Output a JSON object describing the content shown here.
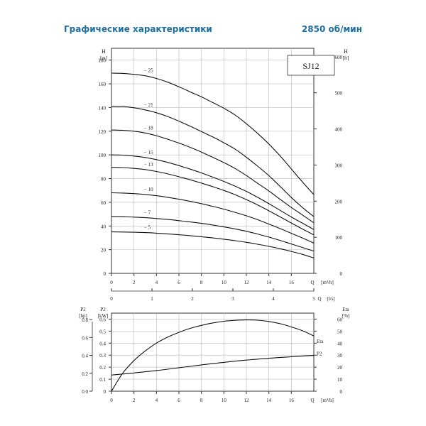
{
  "header": {
    "title": "Графические характеристики",
    "speed": "2850 об/мин"
  },
  "chart_data": [
    {
      "type": "line",
      "model_label": "SJ12",
      "ylabel_left": "H",
      "ylabel_left_unit": "[m]",
      "ylabel_right": "H",
      "ylabel_right_unit": "[ft]",
      "xlabel": "Q",
      "xlabel_unit": "[m³/h]",
      "x2label": "Q",
      "x2label_unit": "[l/s]",
      "xlim": [
        0,
        18
      ],
      "ylim": [
        0,
        190
      ],
      "x_ticks": [
        0,
        2,
        4,
        6,
        8,
        10,
        12,
        14,
        16
      ],
      "y_ticks": [
        0,
        20,
        40,
        60,
        80,
        100,
        120,
        140,
        160,
        180
      ],
      "y_right_ticks": [
        0,
        100,
        200,
        300,
        400,
        500,
        600
      ],
      "x2_ticks": [
        0,
        1,
        2,
        3,
        4,
        5
      ],
      "grid": true,
      "x": [
        0,
        1,
        2,
        3,
        4,
        5,
        6,
        7,
        8,
        9,
        10,
        11,
        12,
        13,
        14,
        15,
        16,
        17,
        18
      ],
      "series": [
        {
          "name": "-25",
          "values": [
            169,
            168.8,
            168,
            166.8,
            164.5,
            161.4,
            157.5,
            153.2,
            149,
            144.2,
            139.4,
            133.6,
            126.3,
            118.2,
            109.2,
            99.2,
            88.1,
            77,
            66.5
          ]
        },
        {
          "name": "-21",
          "values": [
            141,
            140.8,
            139.8,
            138,
            135.6,
            132.4,
            128.5,
            124.2,
            119.7,
            115.2,
            110.2,
            104.8,
            98,
            90.5,
            82.5,
            73.4,
            64,
            55.5,
            47.9
          ]
        },
        {
          "name": "-18",
          "values": [
            121,
            120.8,
            120,
            118.5,
            116.2,
            113.2,
            110,
            106.4,
            102.4,
            98,
            93.5,
            88.5,
            82.6,
            76,
            69.6,
            62.5,
            55.6,
            49.2,
            42.7
          ]
        },
        {
          "name": "-15",
          "values": [
            100,
            99.8,
            99,
            97.8,
            96,
            93.7,
            91,
            88,
            84.8,
            81.3,
            77.6,
            73.6,
            69.2,
            64.2,
            58.8,
            53.2,
            47.6,
            42.3,
            37
          ]
        },
        {
          "name": "-13",
          "values": [
            89.5,
            89.3,
            88.6,
            87.6,
            86,
            84,
            81.6,
            79,
            76.2,
            73.2,
            70,
            66.4,
            62.3,
            57.8,
            52.8,
            47.7,
            42.5,
            37.4,
            32.5
          ]
        },
        {
          "name": "-10",
          "values": [
            68,
            67.8,
            67.3,
            66.6,
            65.6,
            64.2,
            62.6,
            60.8,
            58.8,
            56.6,
            54.2,
            51.5,
            48.6,
            45.3,
            41.6,
            37.8,
            33.8,
            29.8,
            25.5
          ]
        },
        {
          "name": "-7",
          "values": [
            48,
            47.8,
            47.5,
            47,
            46.3,
            45.5,
            44.5,
            43.4,
            42.2,
            40.8,
            39.2,
            37.5,
            35.5,
            33.2,
            30.6,
            27.8,
            24.8,
            21.8,
            18.8
          ]
        },
        {
          "name": "-5",
          "values": [
            35,
            34.9,
            34.7,
            34.4,
            33.9,
            33.3,
            32.6,
            31.8,
            30.9,
            29.9,
            28.8,
            27.6,
            26.2,
            24.6,
            22.8,
            20.8,
            18.5,
            16,
            13
          ]
        }
      ]
    },
    {
      "type": "line",
      "ylabel_left": "P2",
      "ylabel_left_unit": "[hp]",
      "ylabel_mid": "P2",
      "ylabel_mid_unit": "[kW]",
      "ylabel_right": "Eta",
      "ylabel_right_unit": "[%]",
      "xlabel": "Q",
      "xlabel_unit": "[m³/h]",
      "xlim": [
        0,
        18
      ],
      "ylim": [
        0,
        0.65
      ],
      "x_ticks": [
        0,
        2,
        4,
        6,
        8,
        10,
        12,
        14,
        16
      ],
      "y_ticks": [
        0,
        0.1,
        0.2,
        0.3,
        0.4,
        0.5,
        0.6
      ],
      "y_hp_ticks": [
        "0.0",
        "0.2",
        "0.4",
        "0.6",
        "0.8"
      ],
      "y_right_ticks": [
        0,
        10,
        20,
        30,
        40,
        50,
        60
      ],
      "grid": true,
      "x": [
        0,
        1,
        2,
        3,
        4,
        5,
        6,
        7,
        8,
        9,
        10,
        11,
        12,
        13,
        14,
        15,
        16,
        17,
        18
      ],
      "series": [
        {
          "name": "Eta",
          "axis": "right",
          "values": [
            0,
            15,
            25.5,
            33.5,
            40,
            45,
            49,
            52.3,
            54.8,
            56.8,
            58.2,
            59,
            59.3,
            59.1,
            58,
            56.2,
            53.5,
            50.3,
            46
          ]
        },
        {
          "name": "P2",
          "axis": "left",
          "values": [
            0.135,
            0.143,
            0.152,
            0.162,
            0.172,
            0.183,
            0.195,
            0.207,
            0.219,
            0.23,
            0.24,
            0.25,
            0.259,
            0.267,
            0.274,
            0.281,
            0.287,
            0.293,
            0.298
          ]
        }
      ]
    }
  ]
}
